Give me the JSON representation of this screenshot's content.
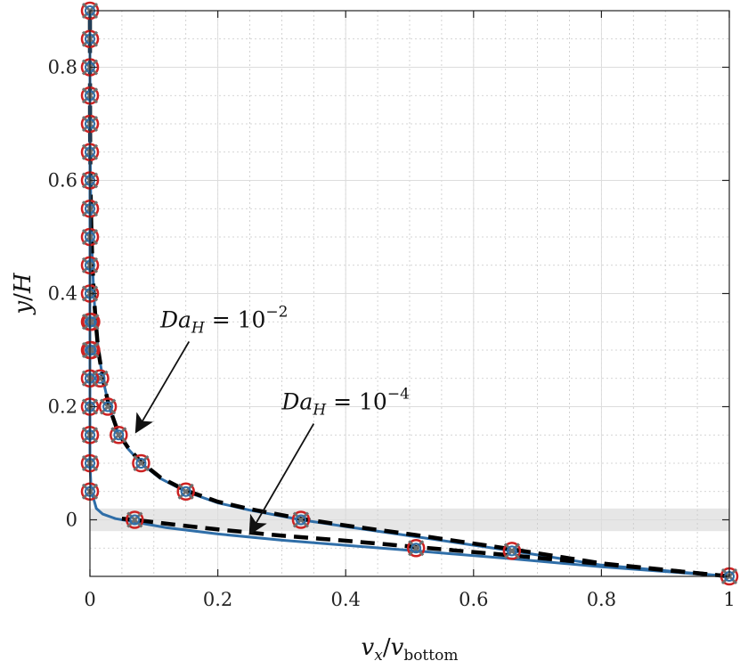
{
  "chart_data": {
    "type": "line",
    "xlabel": {
      "main": "v",
      "main_sub": "x",
      "slash": "/",
      "denom": "v",
      "denom_sub": "bottom"
    },
    "ylabel": {
      "main": "y",
      "slash": "/",
      "denom": "H"
    },
    "xlim": [
      0,
      1
    ],
    "ylim": [
      -0.1,
      0.9
    ],
    "xticks": [
      "0",
      "0.2",
      "0.4",
      "0.6",
      "0.8",
      "1"
    ],
    "xtick_values": [
      0,
      0.2,
      0.4,
      0.6,
      0.8,
      1
    ],
    "yticks": [
      "0",
      "0.2",
      "0.4",
      "0.6",
      "0.8"
    ],
    "ytick_values": [
      0,
      0.2,
      0.4,
      0.6,
      0.8
    ],
    "grid": true,
    "minor_grid": true,
    "shaded_band": {
      "y0": -0.02,
      "y1": 0.02,
      "color": "#e6e6e6"
    },
    "colors": {
      "solid": "#2f6ea8",
      "dashed": "#000000",
      "circle_edge": "#cc2222",
      "cross": "#6f6f6f",
      "small_circle": "#2f6ea8"
    },
    "annotations": [
      {
        "base": "Da",
        "sub": "H",
        "eq": " = 10",
        "sup": "−2",
        "text_x": 0.11,
        "text_y": 0.34,
        "arrow_from": [
          0.155,
          0.315
        ],
        "arrow_to": [
          0.072,
          0.155
        ]
      },
      {
        "base": "Da",
        "sub": "H",
        "eq": " = 10",
        "sup": "−4",
        "text_x": 0.3,
        "text_y": 0.195,
        "arrow_from": [
          0.35,
          0.17
        ],
        "arrow_to": [
          0.25,
          -0.025
        ]
      }
    ],
    "series": [
      {
        "style": "solid",
        "x": [
          1,
          0.8,
          0.66,
          0.51,
          0.4,
          0.33,
          0.25,
          0.2,
          0.15,
          0.11,
          0.08,
          0.06,
          0.045,
          0.03,
          0.02,
          0.013,
          0.009,
          0.006,
          0.004,
          0.0025,
          0.0015,
          0.0008,
          0.0004,
          0.0002,
          0.0001,
          5e-05,
          0
        ],
        "y": [
          -0.1,
          -0.08,
          -0.055,
          -0.03,
          -0.012,
          0,
          0.017,
          0.03,
          0.05,
          0.073,
          0.1,
          0.125,
          0.15,
          0.2,
          0.25,
          0.3,
          0.35,
          0.4,
          0.45,
          0.5,
          0.55,
          0.6,
          0.65,
          0.7,
          0.75,
          0.85,
          0.9
        ]
      },
      {
        "style": "dashed",
        "x": [
          1,
          0.8,
          0.66,
          0.51,
          0.4,
          0.33,
          0.25,
          0.2,
          0.15,
          0.11,
          0.08,
          0.06,
          0.045,
          0.03,
          0.02,
          0.013,
          0.009,
          0.006,
          0.004,
          0.0025,
          0.0015,
          0.0008,
          0.0004,
          0.0002,
          0.0001,
          5e-05,
          0
        ],
        "y": [
          -0.1,
          -0.077,
          -0.052,
          -0.027,
          -0.01,
          0.002,
          0.019,
          0.032,
          0.052,
          0.075,
          0.102,
          0.127,
          0.152,
          0.2,
          0.25,
          0.3,
          0.35,
          0.4,
          0.45,
          0.5,
          0.55,
          0.6,
          0.65,
          0.7,
          0.75,
          0.85,
          0.9
        ]
      },
      {
        "style": "solid",
        "x": [
          1,
          0.8,
          0.66,
          0.51,
          0.4,
          0.3,
          0.2,
          0.12,
          0.07,
          0.04,
          0.02,
          0.01,
          0.005,
          0.002,
          0,
          0
        ],
        "y": [
          -0.1,
          -0.083,
          -0.069,
          -0.055,
          -0.045,
          -0.036,
          -0.025,
          -0.014,
          -0.004,
          0.002,
          0.01,
          0.02,
          0.04,
          0.05,
          0.1,
          0.9
        ]
      },
      {
        "style": "dashed",
        "x": [
          1,
          0.8,
          0.66,
          0.51,
          0.4,
          0.3,
          0.2,
          0.12,
          0.07,
          0.05
        ],
        "y": [
          -0.1,
          -0.078,
          -0.063,
          -0.048,
          -0.037,
          -0.028,
          -0.017,
          -0.007,
          0,
          0.002
        ]
      }
    ],
    "markers": [
      {
        "x": 1,
        "y": -0.1
      },
      {
        "x": 0.66,
        "y": -0.055
      },
      {
        "x": 0.51,
        "y": -0.05
      },
      {
        "x": 0.33,
        "y": 0
      },
      {
        "x": 0.15,
        "y": 0.05
      },
      {
        "x": 0.08,
        "y": 0.1
      },
      {
        "x": 0.045,
        "y": 0.15
      },
      {
        "x": 0.028,
        "y": 0.2
      },
      {
        "x": 0.016,
        "y": 0.25
      },
      {
        "x": 0.07,
        "y": 0
      },
      {
        "x": 0,
        "y": 0.05
      },
      {
        "x": 0,
        "y": 0.1
      },
      {
        "x": 0,
        "y": 0.15
      },
      {
        "x": 0,
        "y": 0.2
      },
      {
        "x": 0,
        "y": 0.25
      },
      {
        "x": 0,
        "y": 0.3
      },
      {
        "x": 0,
        "y": 0.35
      },
      {
        "x": 0,
        "y": 0.4
      },
      {
        "x": 0,
        "y": 0.45
      },
      {
        "x": 0,
        "y": 0.5
      },
      {
        "x": 0,
        "y": 0.55
      },
      {
        "x": 0,
        "y": 0.6
      },
      {
        "x": 0,
        "y": 0.65
      },
      {
        "x": 0,
        "y": 0.7
      },
      {
        "x": 0,
        "y": 0.75
      },
      {
        "x": 0,
        "y": 0.8
      },
      {
        "x": 0,
        "y": 0.85
      },
      {
        "x": 0,
        "y": 0.9
      },
      {
        "x": 0.002,
        "y": 0.3
      },
      {
        "x": 0.002,
        "y": 0.35
      }
    ]
  }
}
